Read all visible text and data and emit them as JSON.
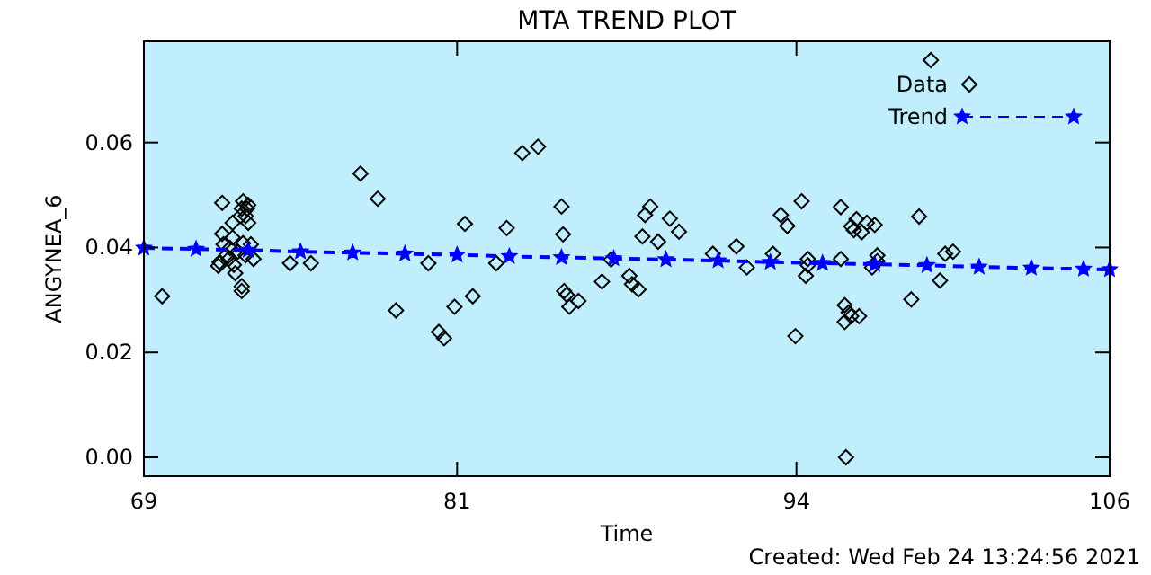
{
  "chart_data": {
    "type": "scatter",
    "title": "MTA TREND PLOT",
    "xlabel": "Time",
    "ylabel": "ANGYNEA_6",
    "xlim": [
      69,
      106
    ],
    "ylim": [
      -0.0036,
      0.0793
    ],
    "xticks": [
      69,
      81,
      94,
      106
    ],
    "yticks": [
      {
        "value": 0,
        "label": "0.00"
      },
      {
        "value": 0.02,
        "label": "0.02"
      },
      {
        "value": 0.04,
        "label": "0.04"
      },
      {
        "value": 0.06,
        "label": "0.06"
      }
    ],
    "legend": "top right",
    "grid": false,
    "annotations": [
      "Created: Wed Feb 24 13:24:56 2021"
    ],
    "series": [
      {
        "name": "Data",
        "marker": "diamond",
        "color": "#000000",
        "x": [
          69.7,
          72.0,
          71.9,
          71.85,
          72.0,
          72.05,
          72.15,
          72.25,
          72.3,
          72.4,
          72.45,
          72.6,
          72.7,
          72.75,
          72.8,
          72.9,
          72.95,
          73.0,
          72.75,
          72.75,
          72.8,
          72.9,
          73.0,
          73.2,
          73.1,
          72.4,
          72.5,
          74.6,
          75.4,
          77.3,
          77.96,
          78.66,
          79.9,
          80.3,
          80.5,
          80.9,
          81.3,
          81.6,
          82.5,
          82.9,
          83.5,
          84.1,
          85.0,
          85.06,
          85.1,
          85.3,
          85.2,
          85.65,
          86.55,
          86.9,
          87.6,
          87.7,
          87.95,
          88.1,
          88.2,
          88.4,
          88.7,
          89.15,
          89.5,
          90.8,
          91.7,
          92.1,
          93.1,
          93.4,
          93.65,
          93.96,
          94.2,
          94.36,
          94.44,
          94.44,
          95.7,
          95.7,
          95.85,
          95.85,
          95.9,
          96.0,
          96.1,
          96.1,
          96.2,
          96.3,
          96.4,
          96.5,
          96.7,
          97.0,
          96.9,
          97.1,
          97.1,
          98.4,
          98.7,
          99.15,
          99.5,
          99.7,
          100.0
        ],
        "values": [
          0.0307,
          0.0485,
          0.0372,
          0.0365,
          0.0426,
          0.0406,
          0.0385,
          0.0378,
          0.0399,
          0.0419,
          0.0367,
          0.0392,
          0.046,
          0.0474,
          0.0488,
          0.046,
          0.0474,
          0.0447,
          0.0326,
          0.0317,
          0.0408,
          0.0385,
          0.0481,
          0.0378,
          0.0406,
          0.0447,
          0.0351,
          0.037,
          0.037,
          0.0541,
          0.0493,
          0.028,
          0.037,
          0.0239,
          0.0227,
          0.0287,
          0.0445,
          0.0307,
          0.037,
          0.0437,
          0.058,
          0.0592,
          0.0478,
          0.0425,
          0.0317,
          0.0287,
          0.031,
          0.0298,
          0.0335,
          0.0377,
          0.0346,
          0.033,
          0.032,
          0.0421,
          0.0462,
          0.0478,
          0.0411,
          0.0455,
          0.043,
          0.0388,
          0.0402,
          0.0362,
          0.0388,
          0.0462,
          0.0441,
          0.0231,
          0.0488,
          0.0346,
          0.0366,
          0.0378,
          0.0477,
          0.0378,
          0.029,
          0.0258,
          0.0,
          0.0276,
          0.0269,
          0.044,
          0.0433,
          0.0454,
          0.0269,
          0.0429,
          0.0447,
          0.0443,
          0.0362,
          0.0385,
          0.0374,
          0.0301,
          0.0459,
          0.0757,
          0.0337,
          0.0388,
          0.0392
        ]
      },
      {
        "name": "Trend",
        "type": "line",
        "marker": "star",
        "line_style": "dashed",
        "color": "#0000ff",
        "x": [
          69,
          71,
          73,
          75,
          77,
          79,
          81,
          83,
          85,
          87,
          89,
          91,
          93,
          95,
          97,
          99,
          101,
          103,
          105,
          106
        ],
        "values": [
          0.0399,
          0.0397,
          0.0395,
          0.0392,
          0.039,
          0.0388,
          0.0386,
          0.0383,
          0.0381,
          0.0379,
          0.0377,
          0.0375,
          0.0372,
          0.037,
          0.0368,
          0.0366,
          0.0363,
          0.0361,
          0.0359,
          0.0358
        ]
      }
    ]
  }
}
